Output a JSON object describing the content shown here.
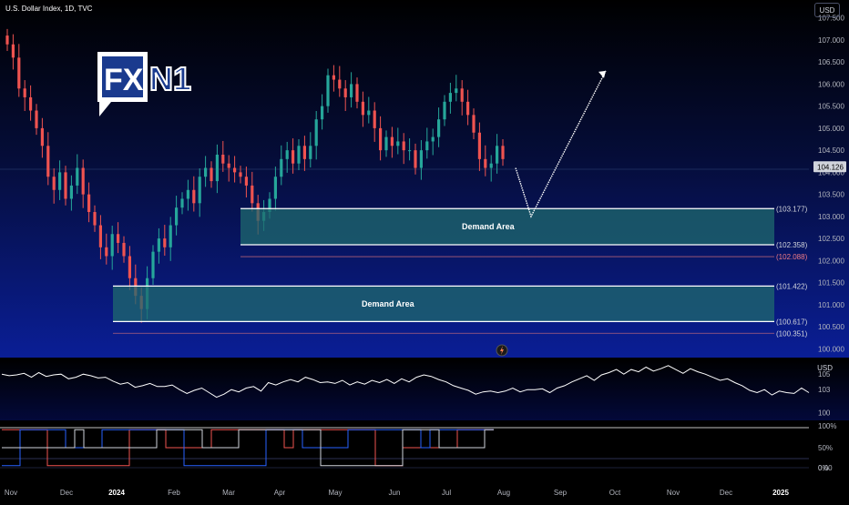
{
  "header": {
    "title": "U.S. Dollar Index, 1D, TVC",
    "currency_button": "USD"
  },
  "logo": {
    "box_text": "FX",
    "tail_text": "N1"
  },
  "colors": {
    "bull": "#26a69a",
    "bear": "#ef5350",
    "zone_fill": "#1f6a6e",
    "line_white": "#ffffff",
    "dotted_red": "#d8707a"
  },
  "chart_data": {
    "type": "candlestick",
    "symbol": "U.S. Dollar Index",
    "interval": "1D",
    "price_axis": {
      "ticks": [
        "107.500",
        "107.000",
        "106.500",
        "106.000",
        "105.500",
        "105.000",
        "104.500",
        "104.000",
        "103.500",
        "103.000",
        "102.500",
        "102.000",
        "101.500",
        "101.000",
        "100.500",
        "100.000"
      ],
      "range": [
        99.8,
        107.7
      ]
    },
    "last_price": "104.126",
    "x_labels": [
      "Nov",
      "Dec",
      "2024",
      "Feb",
      "Mar",
      "Apr",
      "May",
      "Jun",
      "Jul",
      "Aug",
      "Sep",
      "Oct",
      "Nov",
      "Dec",
      "2025"
    ],
    "series_close": [
      106.9,
      106.6,
      105.9,
      105.7,
      105.4,
      105.0,
      104.6,
      103.9,
      103.6,
      104.0,
      103.4,
      103.7,
      104.1,
      103.5,
      103.1,
      102.8,
      102.3,
      102.1,
      102.6,
      102.4,
      102.1,
      101.6,
      101.2,
      100.9,
      101.6,
      102.2,
      102.5,
      102.3,
      102.8,
      103.2,
      103.4,
      103.6,
      103.3,
      103.9,
      104.1,
      103.8,
      104.4,
      104.2,
      104.1,
      104.0,
      103.9,
      103.7,
      103.3,
      102.9,
      103.1,
      103.4,
      103.9,
      104.3,
      104.5,
      104.2,
      104.6,
      104.3,
      104.6,
      105.2,
      105.5,
      106.2,
      106.1,
      105.9,
      105.7,
      106.0,
      105.6,
      105.3,
      105.4,
      105.0,
      104.5,
      104.8,
      104.6,
      104.7,
      104.5,
      104.5,
      104.1,
      104.5,
      104.7,
      104.8,
      105.2,
      105.6,
      105.8,
      105.9,
      105.6,
      105.3,
      104.9,
      104.3,
      104.1,
      104.2,
      104.6,
      104.3
    ],
    "zones": [
      {
        "label": "Demand Area",
        "top": "103.177",
        "bottom": "102.358"
      },
      {
        "label": "Demand Area",
        "top": "101.422",
        "bottom": "100.617"
      }
    ],
    "extra_levels": [
      "102.088",
      "100.351"
    ],
    "projection_path": [
      [
        104.1,
        103.0,
        106.3
      ]
    ],
    "oscillator": {
      "currency": "USD",
      "ticks": [
        "105",
        "103",
        "100"
      ],
      "range": [
        99.6,
        106.2
      ],
      "values": [
        105.0,
        104.8,
        104.9,
        105.1,
        104.6,
        105.2,
        104.7,
        104.9,
        105.0,
        104.4,
        104.6,
        105.0,
        104.8,
        104.5,
        104.6,
        104.1,
        103.7,
        103.9,
        103.3,
        103.5,
        103.8,
        103.4,
        103.4,
        103.6,
        103.0,
        102.5,
        102.9,
        103.2,
        102.6,
        102.0,
        102.4,
        103.0,
        102.7,
        103.2,
        103.4,
        102.8,
        103.9,
        103.6,
        104.0,
        104.3,
        104.0,
        104.6,
        104.3,
        103.9,
        104.0,
        103.8,
        104.2,
        103.6,
        104.0,
        103.7,
        104.2,
        103.9,
        104.3,
        103.8,
        104.4,
        104.0,
        104.6,
        104.9,
        104.7,
        104.3,
        104.0,
        103.5,
        103.2,
        102.9,
        102.4,
        102.7,
        102.8,
        102.6,
        102.8,
        103.2,
        102.7,
        103.0,
        103.0,
        103.1,
        102.6,
        103.2,
        103.5,
        104.0,
        104.4,
        104.8,
        104.2,
        104.9,
        105.2,
        105.6,
        105.0,
        105.6,
        105.3,
        105.9,
        105.4,
        105.7,
        106.1,
        105.6,
        105.1,
        105.7,
        105.3,
        105.0,
        104.6,
        104.2,
        104.4,
        103.9,
        103.5,
        102.9,
        102.6,
        103.0,
        102.3,
        102.8,
        102.6,
        102.5,
        103.2,
        102.6
      ]
    },
    "percent_panel": {
      "ticks": [
        "100%",
        "50%",
        "0%",
        "0.00"
      ]
    }
  }
}
